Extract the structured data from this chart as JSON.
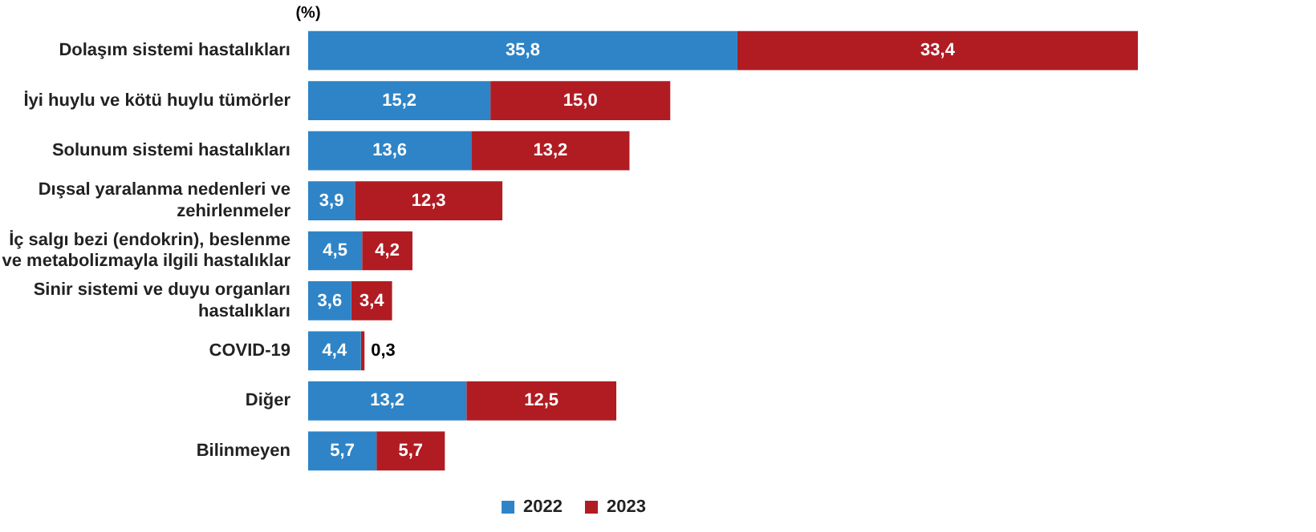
{
  "chart_data": {
    "type": "bar",
    "orientation": "horizontal",
    "stacked": true,
    "categories": [
      "Dolaşım sistemi hastalıkları",
      "İyi huylu ve kötü huylu tümörler",
      "Solunum sistemi hastalıkları",
      "Dışsal yaralanma nedenleri ve zehirlenmeler",
      "İç salgı bezi (endokrin), beslenme ve metabolizmayla ilgili hastalıklar",
      "Sinir sistemi ve duyu organları hastalıkları",
      "COVID-19",
      "Diğer",
      "Bilinmeyen"
    ],
    "series": [
      {
        "name": "2022",
        "color": "#2e84c6",
        "values": [
          35.8,
          15.2,
          13.6,
          3.9,
          4.5,
          3.6,
          4.4,
          13.2,
          5.7
        ],
        "value_labels": [
          "35,8",
          "15,2",
          "13,6",
          "3,9",
          "4,5",
          "3,6",
          "4,4",
          "13,2",
          "5,7"
        ]
      },
      {
        "name": "2023",
        "color": "#b01c22",
        "values": [
          33.4,
          15.0,
          13.2,
          12.3,
          4.2,
          3.4,
          0.3,
          12.5,
          5.7
        ],
        "value_labels": [
          "33,4",
          "15,0",
          "13,2",
          "12,3",
          "4,2",
          "3,4",
          "0,3",
          "12,5",
          "5,7"
        ]
      }
    ],
    "tick_labels": "y",
    "grid": false,
    "legend": "bottom",
    "annotations": [
      "(%)"
    ]
  }
}
